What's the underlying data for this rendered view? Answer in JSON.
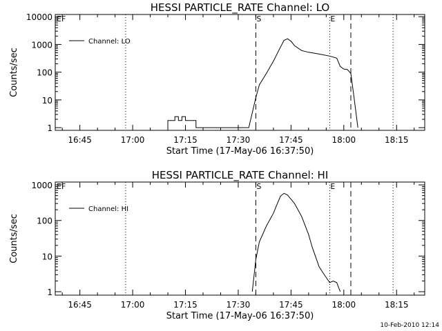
{
  "footer": {
    "timestamp": "10-Feb-2010 12:14"
  },
  "chart_data": [
    {
      "type": "line",
      "title": "HESSI PARTICLE_RATE Channel: LO",
      "xlabel": "Start Time (17-May-06 16:37:50)",
      "ylabel": "Counts/sec",
      "y_scale": "log",
      "grid": false,
      "legend_position": "top-left",
      "x_unit": "minutes of day (HH:MM)",
      "xlim": [
        "16:38",
        "18:23"
      ],
      "ylim": [
        0.8,
        12000
      ],
      "x_ticks": [
        "16:45",
        "17:00",
        "17:15",
        "17:30",
        "17:45",
        "18:00",
        "18:15"
      ],
      "y_ticks": [
        "1",
        "10",
        "100",
        "1000",
        "10000"
      ],
      "markers": [
        {
          "time": "16:58",
          "style": "dotted",
          "label": ""
        },
        {
          "time": "17:35",
          "style": "dashed",
          "label": "S"
        },
        {
          "time": "17:56",
          "style": "dotted",
          "label": "E"
        },
        {
          "time": "18:02",
          "style": "dashed",
          "label": ""
        },
        {
          "time": "18:14",
          "style": "dotted",
          "label": ""
        }
      ],
      "corner_labels": {
        "left": "E",
        "right": "F"
      },
      "series": [
        {
          "name": "Channel: LO",
          "points": [
            [
              "17:10",
              1
            ],
            [
              "17:10",
              1.8
            ],
            [
              "17:12",
              1.8
            ],
            [
              "17:12",
              2.5
            ],
            [
              "17:13",
              2.5
            ],
            [
              "17:13",
              1.8
            ],
            [
              "17:14",
              1.8
            ],
            [
              "17:14",
              2.5
            ],
            [
              "17:15",
              2.5
            ],
            [
              "17:15",
              1.8
            ],
            [
              "17:18",
              1.8
            ],
            [
              "17:18",
              1
            ],
            [
              "17:33",
              1
            ],
            [
              "17:35",
              12
            ],
            [
              "17:36",
              35
            ],
            [
              "17:38",
              90
            ],
            [
              "17:40",
              250
            ],
            [
              "17:42",
              800
            ],
            [
              "17:43",
              1400
            ],
            [
              "17:44",
              1600
            ],
            [
              "17:45",
              1300
            ],
            [
              "17:46",
              900
            ],
            [
              "17:48",
              600
            ],
            [
              "17:50",
              520
            ],
            [
              "17:53",
              450
            ],
            [
              "17:56",
              380
            ],
            [
              "17:58",
              320
            ],
            [
              "17:59",
              160
            ],
            [
              "18:00",
              130
            ],
            [
              "18:01",
              125
            ],
            [
              "18:02",
              90
            ],
            [
              "18:03",
              10
            ],
            [
              "18:04",
              1
            ]
          ]
        }
      ]
    },
    {
      "type": "line",
      "title": "HESSI PARTICLE_RATE Channel: HI",
      "xlabel": "Start Time (17-May-06 16:37:50)",
      "ylabel": "Counts/sec",
      "y_scale": "log",
      "grid": false,
      "legend_position": "top-left",
      "x_unit": "minutes of day (HH:MM)",
      "xlim": [
        "16:38",
        "18:23"
      ],
      "ylim": [
        0.8,
        1200
      ],
      "x_ticks": [
        "16:45",
        "17:00",
        "17:15",
        "17:30",
        "17:45",
        "18:00",
        "18:15"
      ],
      "y_ticks": [
        "1",
        "10",
        "100",
        "1000"
      ],
      "markers": [
        {
          "time": "16:58",
          "style": "dotted",
          "label": ""
        },
        {
          "time": "17:35",
          "style": "dashed",
          "label": "S"
        },
        {
          "time": "17:56",
          "style": "dotted",
          "label": "E"
        },
        {
          "time": "18:02",
          "style": "dashed",
          "label": ""
        },
        {
          "time": "18:14",
          "style": "dotted",
          "label": ""
        }
      ],
      "corner_labels": {
        "left": "E",
        "right": "F"
      },
      "series": [
        {
          "name": "Channel: HI",
          "points": [
            [
              "17:34",
              1
            ],
            [
              "17:35",
              8
            ],
            [
              "17:36",
              25
            ],
            [
              "17:38",
              70
            ],
            [
              "17:40",
              160
            ],
            [
              "17:41",
              280
            ],
            [
              "17:42",
              480
            ],
            [
              "17:43",
              580
            ],
            [
              "17:44",
              520
            ],
            [
              "17:46",
              300
            ],
            [
              "17:48",
              130
            ],
            [
              "17:50",
              40
            ],
            [
              "17:51",
              18
            ],
            [
              "17:53",
              5
            ],
            [
              "17:54",
              3.5
            ],
            [
              "17:56",
              1.8
            ],
            [
              "17:57",
              2
            ],
            [
              "17:58",
              1.8
            ],
            [
              "17:59",
              1
            ]
          ]
        }
      ]
    }
  ]
}
